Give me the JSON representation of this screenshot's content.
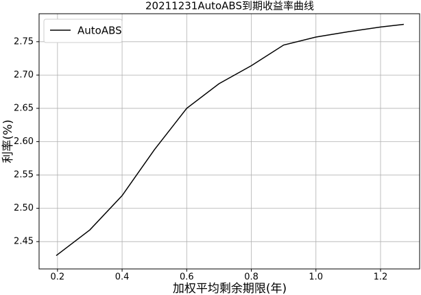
{
  "chart_data": {
    "type": "line",
    "title": "20211231AutoABS到期收益率曲线",
    "x_label": "加权平均剩余期限(年)",
    "y_label": "利率(%)",
    "x": [
      0.196,
      0.3,
      0.4,
      0.5,
      0.6,
      0.7,
      0.8,
      0.9,
      1.0,
      1.1,
      1.2,
      1.272
    ],
    "series": [
      {
        "name": "AutoABS",
        "color": "#000000",
        "values": [
          2.429,
          2.4675,
          2.519,
          2.588,
          2.65,
          2.687,
          2.714,
          2.745,
          2.757,
          2.765,
          2.772,
          2.776
        ]
      }
    ],
    "xlim": [
      0.143,
      1.321
    ],
    "ylim": [
      2.409,
      2.792
    ],
    "xticks": [
      0.2,
      0.4,
      0.6,
      0.8,
      {
        "value": 1,
        "label": "1.0"
      },
      1.2
    ],
    "yticks": [
      2.45,
      {
        "value": 2.5,
        "label": "2.50"
      },
      2.55,
      {
        "value": 2.6,
        "label": "2.60"
      },
      2.65,
      {
        "value": 2.7,
        "label": "2.70"
      },
      2.75
    ],
    "grid": true,
    "legend": "upper-left"
  }
}
